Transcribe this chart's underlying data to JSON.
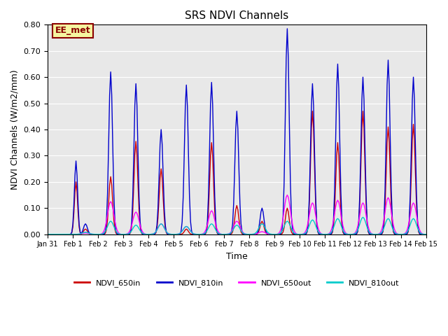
{
  "title": "SRS NDVI Channels",
  "xlabel": "Time",
  "ylabel": "NDVI Channels (W/m2/mm)",
  "ylim": [
    0.0,
    0.8
  ],
  "xlim": [
    0,
    336
  ],
  "background_color": "#e8e8e8",
  "annotation_text": "EE_met",
  "annotation_color": "#8B0000",
  "annotation_bg": "#f5f5a0",
  "annotation_border": "#8B0000",
  "xtick_labels": [
    "Jan 31",
    "Feb 1",
    "Feb 2",
    "Feb 3",
    "Feb 4",
    "Feb 5",
    "Feb 6",
    "Feb 7",
    "Feb 8",
    "Feb 9",
    "Feb 10",
    "Feb 11",
    "Feb 12",
    "Feb 13",
    "Feb 14",
    "Feb 15"
  ],
  "xtick_positions": [
    0,
    24,
    48,
    72,
    96,
    120,
    144,
    168,
    192,
    216,
    240,
    264,
    288,
    312,
    336,
    360
  ],
  "series": {
    "NDVI_650in": {
      "color": "#cc0000",
      "lw": 1.0
    },
    "NDVI_810in": {
      "color": "#0000cc",
      "lw": 1.0
    },
    "NDVI_650out": {
      "color": "#ff00ff",
      "lw": 1.0
    },
    "NDVI_810out": {
      "color": "#00cccc",
      "lw": 1.0
    }
  },
  "legend_entries": [
    "NDVI_650in",
    "NDVI_810in",
    "NDVI_650out",
    "NDVI_810out"
  ],
  "legend_colors": [
    "#cc0000",
    "#0000cc",
    "#ff00ff",
    "#00cccc"
  ]
}
